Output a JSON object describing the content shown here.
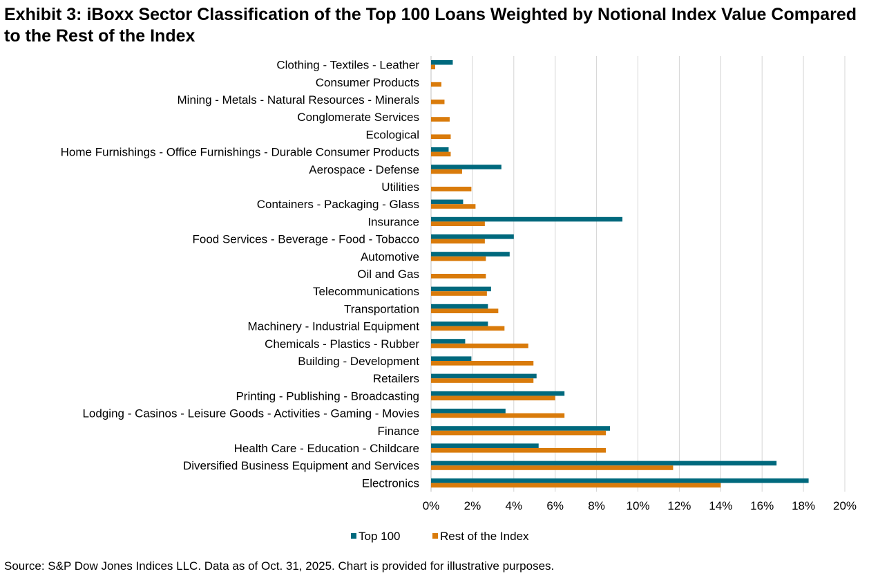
{
  "title": "Exhibit 3: iBoxx Sector Classification of the Top 100 Loans Weighted by Notional Index Value Compared to the Rest of the Index",
  "source": "Source: S&P Dow Jones Indices LLC. Data as of Oct. 31, 2025. Chart is provided for illustrative purposes.",
  "colors": {
    "top100": "#00697d",
    "rest": "#d97b0b",
    "grid": "#d4d4d4",
    "axis": "#bfbfbf"
  },
  "chart_data": {
    "type": "bar",
    "orientation": "horizontal",
    "title": "Exhibit 3: iBoxx Sector Classification of the Top 100 Loans Weighted by Notional Index Value Compared to the Rest of the Index",
    "xlabel": "",
    "ylabel": "",
    "xlim": [
      0,
      20
    ],
    "x_ticks": [
      "0%",
      "2%",
      "4%",
      "6%",
      "8%",
      "10%",
      "12%",
      "14%",
      "16%",
      "18%",
      "20%"
    ],
    "grid": "vertical",
    "legend_position": "bottom",
    "categories": [
      "Clothing - Textiles - Leather",
      "Consumer Products",
      "Mining - Metals - Natural Resources - Minerals",
      "Conglomerate Services",
      "Ecological",
      "Home Furnishings - Office Furnishings - Durable Consumer Products",
      "Aerospace - Defense",
      "Utilities",
      "Containers - Packaging - Glass",
      "Insurance",
      "Food Services - Beverage - Food - Tobacco",
      "Automotive",
      "Oil and Gas",
      "Telecommunications",
      "Transportation",
      "Machinery - Industrial Equipment",
      "Chemicals - Plastics - Rubber",
      "Building - Development",
      "Retailers",
      "Printing - Publishing - Broadcasting",
      "Lodging - Casinos - Leisure Goods - Activities - Gaming - Movies",
      "Finance",
      "Health Care - Education - Childcare",
      "Diversified Business Equipment and Services",
      "Electronics"
    ],
    "series": [
      {
        "name": "Top 100",
        "values": [
          1.05,
          0,
          0,
          0,
          0,
          0.85,
          3.4,
          0,
          1.55,
          9.25,
          4.0,
          3.8,
          0,
          2.9,
          2.75,
          2.75,
          1.65,
          1.95,
          5.1,
          6.45,
          3.6,
          8.65,
          5.2,
          16.7,
          18.25
        ]
      },
      {
        "name": "Rest of the Index",
        "values": [
          0.2,
          0.5,
          0.65,
          0.9,
          0.95,
          0.95,
          1.5,
          1.95,
          2.15,
          2.6,
          2.6,
          2.65,
          2.65,
          2.7,
          3.25,
          3.55,
          4.7,
          4.95,
          4.95,
          6.0,
          6.45,
          8.45,
          8.45,
          11.7,
          14.0
        ]
      }
    ]
  }
}
